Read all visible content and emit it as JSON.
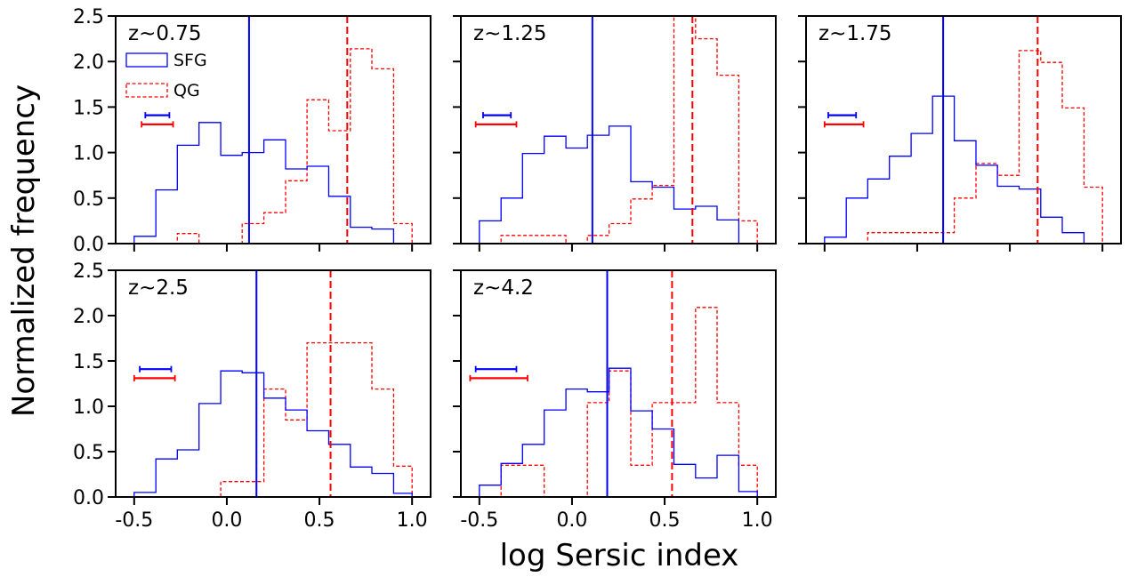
{
  "chart_data": {
    "type": "histogram-grid",
    "xlabel": "log Sersic index",
    "ylabel": "Normalized frequency",
    "xlim": [
      -0.6,
      1.1
    ],
    "ylim": [
      0,
      2.5
    ],
    "xticks": [
      -0.5,
      0.0,
      0.5,
      1.0
    ],
    "xtick_labels": [
      "-0.5",
      "0.0",
      "0.5",
      "1.0"
    ],
    "yticks": [
      0.0,
      0.5,
      1.0,
      1.5,
      2.0,
      2.5
    ],
    "ytick_labels": [
      "0.0",
      "0.5",
      "1.0",
      "1.5",
      "2.0",
      "2.5"
    ],
    "bin_edges": [
      -0.5,
      -0.383,
      -0.267,
      -0.15,
      -0.033,
      0.083,
      0.2,
      0.317,
      0.433,
      0.55,
      0.667,
      0.783,
      0.9,
      1.0
    ],
    "legend": [
      {
        "name": "SFG",
        "color": "#0000ff",
        "style": "solid"
      },
      {
        "name": "QG",
        "color": "#ff0000",
        "style": "dashed"
      }
    ],
    "colors": {
      "sfg": "#0000ff",
      "qg": "#ff0000"
    },
    "panels": [
      {
        "label": "z∼0.75",
        "sfg": [
          0.08,
          0.59,
          1.08,
          1.33,
          0.97,
          1.0,
          1.14,
          0.82,
          0.85,
          0.52,
          0.18,
          0.16,
          0
        ],
        "qg": [
          0,
          0,
          0.11,
          0,
          0,
          0.22,
          0.34,
          0.69,
          1.58,
          1.24,
          2.14,
          1.92,
          0.22
        ],
        "sfg_median": 0.12,
        "qg_median": 0.65,
        "sfg_err": [
          -0.44,
          -0.31
        ],
        "qg_err": [
          -0.46,
          -0.29
        ]
      },
      {
        "label": "z∼1.25",
        "sfg": [
          0.25,
          0.5,
          0.99,
          1.18,
          1.05,
          1.19,
          1.29,
          0.68,
          0.62,
          0.38,
          0.41,
          0.26,
          0
        ],
        "qg": [
          0,
          0.09,
          0.09,
          0.09,
          0,
          0.09,
          0.22,
          0.49,
          0.64,
          2.5,
          2.25,
          1.85,
          0.25
        ],
        "sfg_median": 0.11,
        "qg_median": 0.65,
        "sfg_err": [
          -0.48,
          -0.33
        ],
        "qg_err": [
          -0.52,
          -0.3
        ]
      },
      {
        "label": "z∼1.75",
        "sfg": [
          0.07,
          0.5,
          0.71,
          0.96,
          1.21,
          1.62,
          1.13,
          0.86,
          0.63,
          0.6,
          0.29,
          0.12,
          0
        ],
        "qg": [
          0,
          0,
          0.12,
          0.12,
          0.12,
          0.12,
          0.5,
          0.88,
          0.75,
          2.12,
          1.99,
          1.49,
          0.62
        ],
        "sfg_median": 0.14,
        "qg_median": 0.65,
        "sfg_err": [
          -0.48,
          -0.33
        ],
        "qg_err": [
          -0.5,
          -0.29
        ]
      },
      {
        "label": "z∼2.5",
        "sfg": [
          0.05,
          0.42,
          0.52,
          1.03,
          1.39,
          1.37,
          1.09,
          0.96,
          0.73,
          0.58,
          0.33,
          0.26,
          0.04
        ],
        "qg": [
          0,
          0,
          0,
          0,
          0.17,
          0.17,
          1.19,
          0.85,
          1.7,
          1.7,
          1.7,
          1.19,
          0.34
        ],
        "sfg_median": 0.16,
        "qg_median": 0.56,
        "sfg_err": [
          -0.47,
          -0.3
        ],
        "qg_err": [
          -0.5,
          -0.28
        ]
      },
      {
        "label": "z∼4.2",
        "sfg": [
          0.13,
          0.37,
          0.58,
          0.96,
          1.19,
          1.16,
          1.42,
          0.95,
          0.75,
          0.36,
          0.21,
          0.46,
          0.06
        ],
        "qg": [
          0,
          0.35,
          0.35,
          0,
          0,
          1.04,
          1.39,
          0.35,
          1.04,
          1.04,
          2.09,
          1.04,
          0.35
        ],
        "sfg_median": 0.19,
        "qg_median": 0.54,
        "sfg_err": [
          -0.52,
          -0.3
        ],
        "qg_err": [
          -0.55,
          -0.24
        ]
      }
    ]
  }
}
